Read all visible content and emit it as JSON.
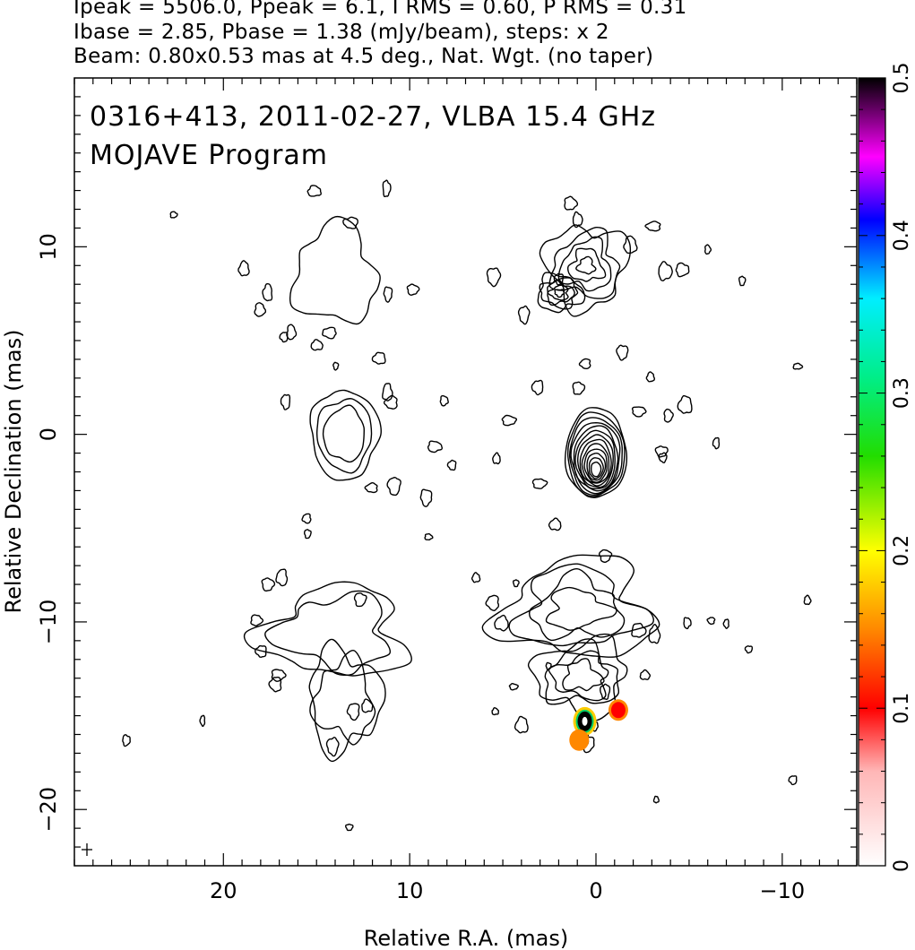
{
  "header": {
    "line1": "Ipeak = 5506.0, Ppeak = 6.1, I RMS = 0.60, P RMS = 0.31",
    "line2": "Ibase = 2.85, Pbase = 1.38 (mJy/beam), steps: x 2",
    "line3": "Beam: 0.80x0.53 mas at 4.5 deg., Nat. Wgt. (no taper)"
  },
  "chart_data": {
    "type": "contour",
    "title_line1": "0316+413, 2011-02-27, VLBA 15.4 GHz",
    "title_line2": "MOJAVE Program",
    "xlabel": "Relative R.A. (mas)",
    "ylabel": "Relative Declination (mas)",
    "xlim": [
      28.0,
      -14.0
    ],
    "ylim": [
      -23.0,
      19.0
    ],
    "x_ticks": [
      20,
      10,
      0,
      -10
    ],
    "y_ticks": [
      10,
      0,
      -10,
      -20
    ],
    "x_tick_labels": [
      "20",
      "10",
      "0",
      "−10"
    ],
    "y_tick_labels": [
      "10",
      "0",
      "−10",
      "−20"
    ],
    "colorbar": {
      "ticks": [
        0,
        0.1,
        0.2,
        0.3,
        0.4,
        0.5
      ],
      "tick_labels": [
        "0",
        "0.1",
        "0.2",
        "0.3",
        "0.4",
        "0.5"
      ],
      "range": [
        0,
        0.5
      ]
    },
    "sources": [
      {
        "center": [
          0.0,
          -1.0
        ],
        "levels": 13,
        "peak": true
      },
      {
        "center": [
          1.0,
          8.5
        ],
        "levels": 5
      },
      {
        "center": [
          1.0,
          -11.0
        ],
        "levels": 4
      },
      {
        "center": [
          13.5,
          0.0
        ],
        "levels": 3
      },
      {
        "center": [
          14.0,
          8.5
        ],
        "levels": 1
      },
      {
        "center": [
          14.0,
          -12.0
        ],
        "levels": 2
      }
    ],
    "polarization_hotspots": [
      {
        "x": 0.6,
        "y": -15.3,
        "level": 0.5
      },
      {
        "x": -1.2,
        "y": -14.7,
        "level": 0.12
      },
      {
        "x": 0.9,
        "y": -16.3,
        "level": 0.18
      }
    ]
  }
}
